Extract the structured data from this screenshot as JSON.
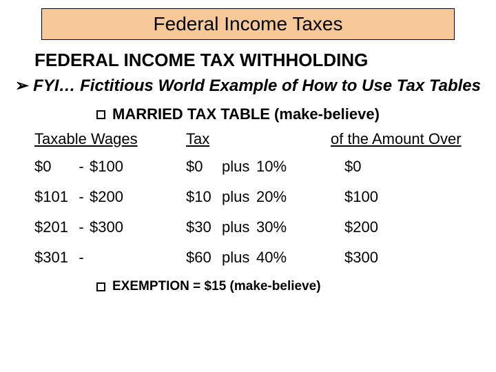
{
  "banner": {
    "title": "Federal Income Taxes",
    "bg": "#f7c999",
    "border": "#000000"
  },
  "subtitle": "FEDERAL INCOME TAX WITHHOLDING",
  "fyi": {
    "arrow": "➢",
    "text": "FYI… Fictitious World Example of How to Use Tax Tables"
  },
  "table_heading": "MARRIED TAX TABLE (make-believe)",
  "columns": {
    "c1": "Taxable Wages",
    "c2": "Tax",
    "c3": "of the Amount Over"
  },
  "rows": [
    {
      "low": "$0",
      "dash": "-",
      "high": "$100",
      "base": "$0",
      "plus": "plus",
      "rate": "10%",
      "over": "$0"
    },
    {
      "low": "$101",
      "dash": "-",
      "high": "$200",
      "base": "$10",
      "plus": "plus",
      "rate": "20%",
      "over": "$100"
    },
    {
      "low": "$201",
      "dash": "-",
      "high": "$300",
      "base": "$30",
      "plus": "plus",
      "rate": "30%",
      "over": "$200"
    },
    {
      "low": "$301",
      "dash": "-",
      "high": "",
      "base": "$60",
      "plus": "plus",
      "rate": "40%",
      "over": "$300"
    }
  ],
  "exemption": "EXEMPTION  =  $15 (make-believe)"
}
